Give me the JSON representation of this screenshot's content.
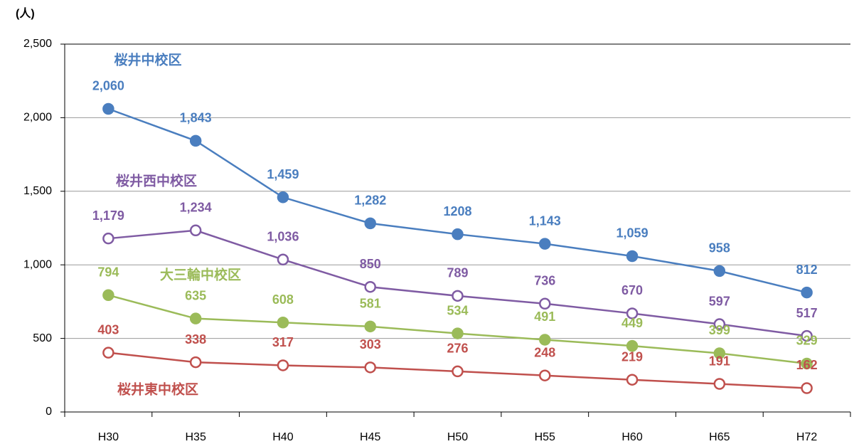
{
  "chart_data": {
    "type": "line",
    "y_unit": "(人)",
    "categories": [
      "H30",
      "H35",
      "H40",
      "H45",
      "H50",
      "H55",
      "H60",
      "H65",
      "H72"
    ],
    "ylim": [
      0,
      2500
    ],
    "yticks": [
      0,
      500,
      {
        "value": 1000,
        "label": "1,000"
      },
      {
        "value": 1500,
        "label": "1,500"
      },
      {
        "value": 2000,
        "label": "2,000"
      },
      {
        "value": 2500,
        "label": "2,500"
      }
    ],
    "grid": true,
    "series": [
      {
        "name": "桜井中校区",
        "color": "#4a7ebf",
        "marker_fill": "filled",
        "values": [
          2060,
          1843,
          1459,
          1282,
          1208,
          1143,
          1059,
          958,
          812
        ],
        "value_labels": [
          "2,060",
          "1,843",
          "1,459",
          "1,282",
          "1208",
          "1,143",
          "1,059",
          "958",
          "812"
        ]
      },
      {
        "name": "桜井西中校区",
        "color": "#7f5ba3",
        "marker_fill": "hollow",
        "values": [
          1179,
          1234,
          1036,
          850,
          789,
          736,
          670,
          597,
          517
        ],
        "value_labels": [
          "1,179",
          "1,234",
          "1,036",
          "850",
          "789",
          "736",
          "670",
          "597",
          "517"
        ]
      },
      {
        "name": "大三輪中校区",
        "color": "#9bbb59",
        "marker_fill": "filled",
        "values": [
          794,
          635,
          608,
          581,
          534,
          491,
          449,
          399,
          329
        ],
        "value_labels": [
          "794",
          "635",
          "608",
          "581",
          "534",
          "491",
          "449",
          "399",
          "329"
        ]
      },
      {
        "name": "桜井東中校区",
        "color": "#c0504d",
        "marker_fill": "hollow",
        "values": [
          403,
          338,
          317,
          303,
          276,
          248,
          219,
          191,
          162
        ],
        "value_labels": [
          "403",
          "338",
          "317",
          "303",
          "276",
          "248",
          "219",
          "191",
          "162"
        ]
      }
    ]
  }
}
